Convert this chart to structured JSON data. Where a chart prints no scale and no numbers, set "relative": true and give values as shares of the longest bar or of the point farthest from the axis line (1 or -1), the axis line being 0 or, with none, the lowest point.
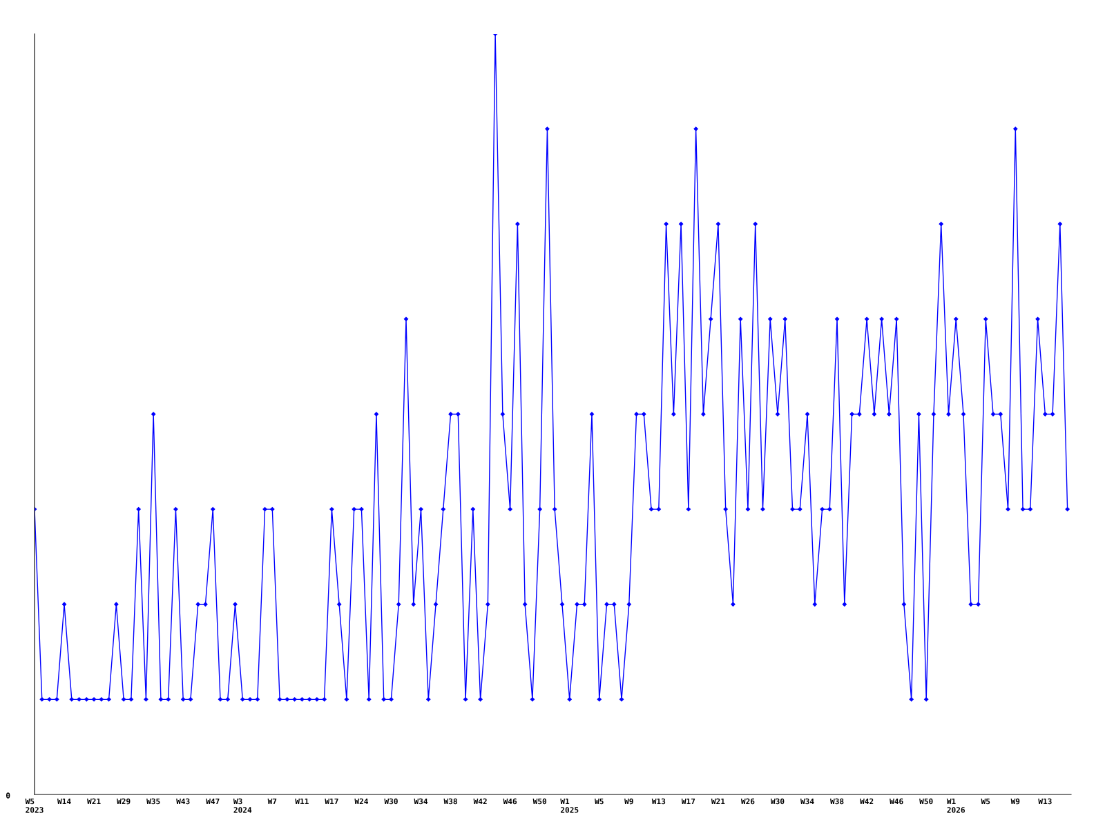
{
  "chart_data": {
    "type": "line",
    "relative": true,
    "marker": "diamond",
    "line_style": "solid",
    "annotations": [
      "0"
    ],
    "categories": [
      "W5\n2023",
      null,
      null,
      null,
      "W14",
      null,
      null,
      null,
      "W21",
      null,
      null,
      null,
      "W29",
      null,
      null,
      null,
      "W35",
      null,
      null,
      null,
      "W43",
      null,
      null,
      null,
      "W47",
      null,
      null,
      null,
      "W3\n2024",
      null,
      null,
      null,
      "W7",
      null,
      null,
      null,
      "W11",
      null,
      null,
      null,
      "W17",
      null,
      null,
      null,
      "W24",
      null,
      null,
      null,
      "W30",
      null,
      null,
      null,
      "W34",
      null,
      null,
      null,
      "W38",
      null,
      null,
      null,
      "W42",
      null,
      null,
      null,
      "W46",
      null,
      null,
      null,
      "W50",
      null,
      null,
      null,
      "W1\n2025",
      null,
      null,
      null,
      "W5",
      null,
      null,
      null,
      "W9",
      null,
      null,
      null,
      "W13",
      null,
      null,
      null,
      "W17",
      null,
      null,
      null,
      "W21",
      null,
      null,
      null,
      "W26",
      null,
      null,
      null,
      "W30",
      null,
      null,
      null,
      "W34",
      null,
      null,
      null,
      "W38",
      null,
      null,
      null,
      "W42",
      null,
      null,
      null,
      "W46",
      null,
      null,
      null,
      "W50",
      null,
      null,
      null,
      "W1\n2026",
      null,
      null,
      null,
      "W5",
      null,
      null,
      null,
      "W9",
      null,
      null,
      null,
      "W13",
      null,
      null,
      null
    ],
    "series": [
      {
        "color": "#0000ff",
        "values": [
          0.375,
          0.125,
          0.125,
          0.125,
          0.25,
          0.125,
          0.125,
          0.125,
          0.125,
          0.125,
          0.125,
          0.25,
          0.125,
          0.125,
          0.375,
          0.125,
          0.5,
          0.125,
          0.125,
          0.375,
          0.125,
          0.125,
          0.25,
          0.25,
          0.375,
          0.125,
          0.125,
          0.25,
          0.125,
          0.125,
          0.125,
          0.375,
          0.375,
          0.125,
          0.125,
          0.125,
          0.125,
          0.125,
          0.125,
          0.125,
          0.375,
          0.25,
          0.125,
          0.375,
          0.375,
          0.125,
          0.5,
          0.125,
          0.125,
          0.25,
          0.625,
          0.25,
          0.375,
          0.125,
          0.25,
          0.375,
          0.5,
          0.5,
          0.125,
          0.375,
          0.125,
          0.25,
          1,
          0.5,
          0.375,
          0.75,
          0.25,
          0.125,
          0.375,
          0.875,
          0.375,
          0.25,
          0.125,
          0.25,
          0.25,
          0.5,
          0.125,
          0.25,
          0.25,
          0.125,
          0.25,
          0.5,
          0.5,
          0.375,
          0.375,
          0.75,
          0.5,
          0.75,
          0.375,
          0.875,
          0.5,
          0.625,
          0.75,
          0.375,
          0.25,
          0.625,
          0.375,
          0.75,
          0.375,
          0.625,
          0.5,
          0.625,
          0.375,
          0.375,
          0.5,
          0.25,
          0.375,
          0.375,
          0.625,
          0.25,
          0.5,
          0.5,
          0.625,
          0.5,
          0.625,
          0.5,
          0.625,
          0.25,
          0.125,
          0.5,
          0.125,
          0.5,
          0.75,
          0.5,
          0.625,
          0.5,
          0.25,
          0.25,
          0.625,
          0.5,
          0.5,
          0.375,
          0.875,
          0.375,
          0.375,
          0.625,
          0.5,
          0.5,
          0.75,
          0.375
        ]
      }
    ]
  }
}
